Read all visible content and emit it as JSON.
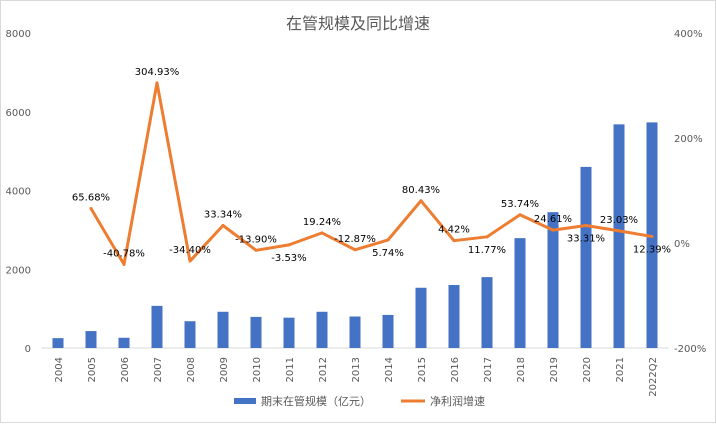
{
  "chart_data": {
    "type": "bar+line",
    "title": "在管规模及同比增速",
    "categories": [
      "2004",
      "2005",
      "2006",
      "2007",
      "2008",
      "2009",
      "2010",
      "2011",
      "2012",
      "2013",
      "2014",
      "2015",
      "2016",
      "2017",
      "2018",
      "2019",
      "2020",
      "2021",
      "2022Q2"
    ],
    "series": [
      {
        "name": "期末在管规模（亿元）",
        "type": "bar",
        "axis": "left",
        "color": "#4472C4",
        "values": [
          250,
          430,
          260,
          1070,
          680,
          920,
          790,
          770,
          920,
          800,
          840,
          1530,
          1600,
          1800,
          2790,
          3450,
          4600,
          5680,
          5730
        ]
      },
      {
        "name": "净利润增速",
        "type": "line",
        "axis": "right",
        "color": "#ED7D31",
        "values": [
          null,
          65.68,
          -40.78,
          304.93,
          -34.4,
          33.34,
          -13.9,
          -3.53,
          19.24,
          -12.87,
          5.74,
          80.43,
          4.42,
          11.77,
          53.74,
          24.61,
          33.31,
          23.03,
          12.39
        ],
        "labels": [
          null,
          "65.68%",
          "-40.78%",
          "304.93%",
          "-34.40%",
          "33.34%",
          "-13.90%",
          "-3.53%",
          "19.24%",
          "-12.87%",
          "5.74%",
          "80.43%",
          "4.42%",
          "11.77%",
          "53.74%",
          "24.61%",
          "33.31%",
          "23.03%",
          "12.39%"
        ]
      }
    ],
    "left_axis": {
      "ylim": [
        0,
        8000
      ],
      "ticks": [
        "0",
        "2000",
        "4000",
        "6000",
        "8000"
      ]
    },
    "right_axis": {
      "ylim": [
        -200,
        400
      ],
      "ticks": [
        "-200%",
        "0%",
        "200%",
        "400%"
      ]
    },
    "grid": false,
    "legend": "bottom"
  }
}
